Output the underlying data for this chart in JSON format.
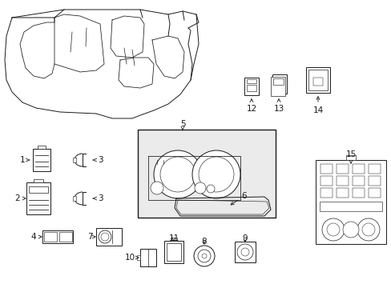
{
  "bg_color": "#ffffff",
  "line_color": "#1a1a1a",
  "label_color": "#000000",
  "figsize": [
    4.89,
    3.6
  ],
  "dpi": 100,
  "label_fontsize": 7.5,
  "lw": 0.7
}
